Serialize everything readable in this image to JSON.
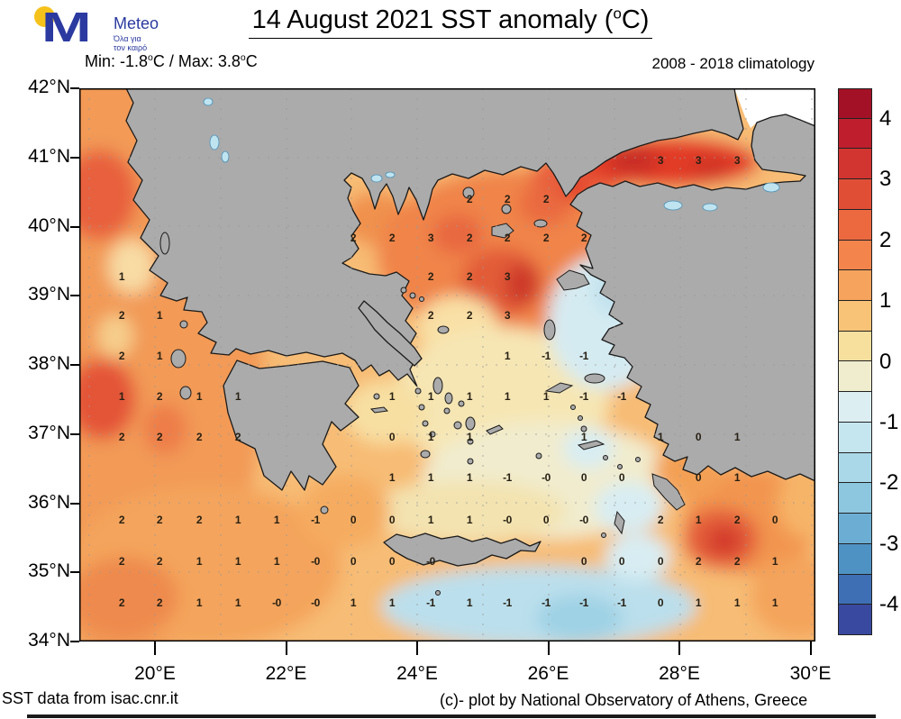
{
  "logo": {
    "monogram": "M",
    "brand": "Meteo",
    "tagline_line1": "Όλα για",
    "tagline_line2": "τον καιρό"
  },
  "header": {
    "title_prefix": "14 August 2021 SST anomaly (",
    "degree_sup": "o",
    "title_suffix": "C)"
  },
  "subheader": {
    "minmax_p1": "Min: -1.8",
    "minmax_p2": "C / Max: 3.8",
    "minmax_p3": "C",
    "sup": "o",
    "climatology": "2008 - 2018 climatology"
  },
  "axes": {
    "lat_labels": [
      "42°N",
      "41°N",
      "40°N",
      "39°N",
      "38°N",
      "37°N",
      "36°N",
      "35°N",
      "34°N"
    ],
    "lon_labels": [
      "20°E",
      "22°E",
      "24°E",
      "26°E",
      "28°E",
      "30°E"
    ]
  },
  "colorbar": {
    "tick_labels": [
      "4",
      "3",
      "2",
      "1",
      "0",
      "-1",
      "-2",
      "-3",
      "-4"
    ],
    "segments": [
      "#A31126",
      "#BF1F2C",
      "#D23430",
      "#E14E36",
      "#EC6940",
      "#F2844C",
      "#F5A35D",
      "#F9C377",
      "#F7DF9E",
      "#EFEDCE",
      "#DCEEF2",
      "#C5E5EF",
      "#ABD8E9",
      "#8DC6DF",
      "#6CAED3",
      "#4E92C3",
      "#3E6FB4",
      "#39499F"
    ]
  },
  "map": {
    "values": [
      [
        645,
        80,
        "3"
      ],
      [
        687,
        80,
        "3"
      ],
      [
        730,
        80,
        "3"
      ],
      [
        433,
        123,
        "2"
      ],
      [
        475,
        123,
        "2"
      ],
      [
        518,
        123,
        "2"
      ],
      [
        304,
        166,
        "2"
      ],
      [
        347,
        166,
        "2"
      ],
      [
        390,
        166,
        "3"
      ],
      [
        433,
        166,
        "2"
      ],
      [
        475,
        166,
        "2"
      ],
      [
        518,
        166,
        "2"
      ],
      [
        560,
        166,
        "2"
      ],
      [
        47,
        209,
        "1"
      ],
      [
        390,
        209,
        "2"
      ],
      [
        433,
        209,
        "2"
      ],
      [
        475,
        209,
        "3"
      ],
      [
        47,
        252,
        "2"
      ],
      [
        89,
        252,
        "1"
      ],
      [
        390,
        252,
        "2"
      ],
      [
        433,
        252,
        "2"
      ],
      [
        475,
        252,
        "3"
      ],
      [
        47,
        297,
        "2"
      ],
      [
        89,
        297,
        "1"
      ],
      [
        475,
        297,
        "1"
      ],
      [
        518,
        297,
        "-1"
      ],
      [
        560,
        297,
        "-1"
      ],
      [
        47,
        342,
        "1"
      ],
      [
        89,
        342,
        "2"
      ],
      [
        133,
        342,
        "1"
      ],
      [
        176,
        342,
        "1"
      ],
      [
        347,
        342,
        "1"
      ],
      [
        390,
        342,
        "1"
      ],
      [
        433,
        342,
        "1"
      ],
      [
        475,
        342,
        "1"
      ],
      [
        518,
        342,
        "1"
      ],
      [
        560,
        342,
        "-1"
      ],
      [
        602,
        342,
        "-1"
      ],
      [
        47,
        387,
        "2"
      ],
      [
        89,
        387,
        "2"
      ],
      [
        133,
        387,
        "2"
      ],
      [
        176,
        387,
        "2"
      ],
      [
        347,
        387,
        "0"
      ],
      [
        390,
        387,
        "1"
      ],
      [
        433,
        387,
        "1"
      ],
      [
        560,
        387,
        "1"
      ],
      [
        645,
        387,
        "1"
      ],
      [
        687,
        387,
        "0"
      ],
      [
        730,
        387,
        "1"
      ],
      [
        347,
        432,
        "1"
      ],
      [
        390,
        432,
        "1"
      ],
      [
        433,
        432,
        "1"
      ],
      [
        475,
        432,
        "-1"
      ],
      [
        518,
        432,
        "-0"
      ],
      [
        560,
        432,
        "0"
      ],
      [
        602,
        432,
        "0"
      ],
      [
        687,
        432,
        "0"
      ],
      [
        730,
        432,
        "1"
      ],
      [
        47,
        479,
        "2"
      ],
      [
        89,
        479,
        "2"
      ],
      [
        133,
        479,
        "2"
      ],
      [
        176,
        479,
        "1"
      ],
      [
        219,
        479,
        "1"
      ],
      [
        262,
        479,
        "-1"
      ],
      [
        304,
        479,
        "0"
      ],
      [
        347,
        479,
        "0"
      ],
      [
        390,
        479,
        "1"
      ],
      [
        433,
        479,
        "1"
      ],
      [
        475,
        479,
        "-0"
      ],
      [
        518,
        479,
        "0"
      ],
      [
        560,
        479,
        "-0"
      ],
      [
        645,
        479,
        "2"
      ],
      [
        687,
        479,
        "1"
      ],
      [
        730,
        479,
        "2"
      ],
      [
        772,
        479,
        "0"
      ],
      [
        47,
        525,
        "2"
      ],
      [
        89,
        525,
        "2"
      ],
      [
        133,
        525,
        "1"
      ],
      [
        176,
        525,
        "1"
      ],
      [
        219,
        525,
        "1"
      ],
      [
        262,
        525,
        "-0"
      ],
      [
        304,
        525,
        "0"
      ],
      [
        347,
        525,
        "0"
      ],
      [
        390,
        525,
        "-0"
      ],
      [
        560,
        525,
        "0"
      ],
      [
        602,
        525,
        "0"
      ],
      [
        645,
        525,
        "0"
      ],
      [
        687,
        525,
        "2"
      ],
      [
        730,
        525,
        "2"
      ],
      [
        772,
        525,
        "1"
      ],
      [
        47,
        571,
        "2"
      ],
      [
        89,
        571,
        "2"
      ],
      [
        133,
        571,
        "1"
      ],
      [
        176,
        571,
        "1"
      ],
      [
        219,
        571,
        "-0"
      ],
      [
        262,
        571,
        "-0"
      ],
      [
        304,
        571,
        "1"
      ],
      [
        347,
        571,
        "1"
      ],
      [
        390,
        571,
        "-1"
      ],
      [
        433,
        571,
        "1"
      ],
      [
        475,
        571,
        "-1"
      ],
      [
        518,
        571,
        "-1"
      ],
      [
        560,
        571,
        "-1"
      ],
      [
        602,
        571,
        "-1"
      ],
      [
        645,
        571,
        "0"
      ],
      [
        687,
        571,
        "1"
      ],
      [
        730,
        571,
        "1"
      ],
      [
        772,
        571,
        "1"
      ]
    ]
  },
  "footer": {
    "left": "SST data from isac.cnr.it",
    "right": "(c)- plot by National Observatory of Athens, Greece"
  },
  "colors": {
    "land": "#ABABAB",
    "coast": "#1A1A1A",
    "lake": "#BFE4F0",
    "lake_edge": "#4A90B8",
    "sea_base": "#F7BC74",
    "grid": "#999999",
    "logo_blue": "#2B3AA0",
    "logo_yellow": "#F5C21B"
  }
}
